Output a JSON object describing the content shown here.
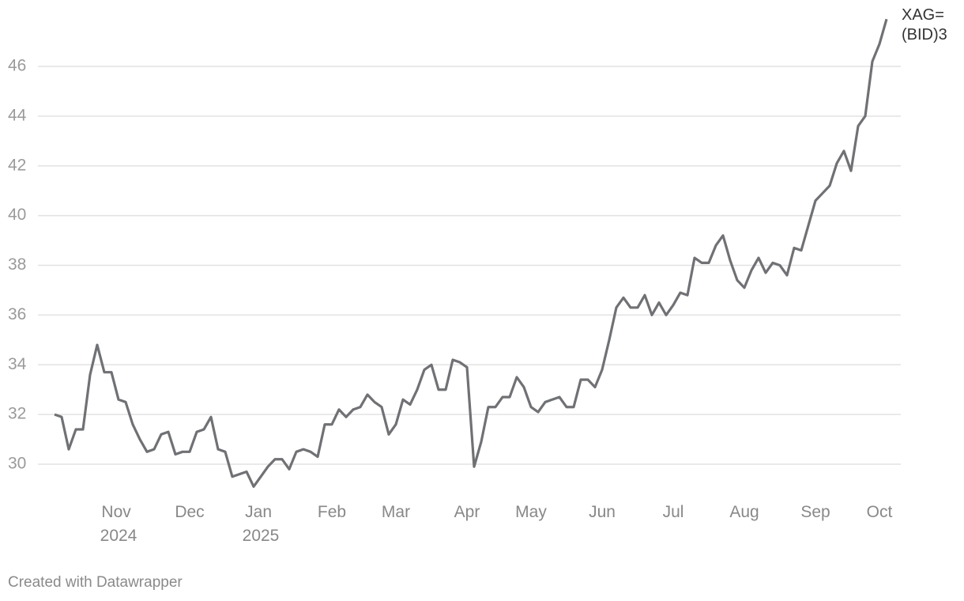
{
  "chart_data": {
    "type": "line",
    "categories": [
      null,
      null,
      null,
      null,
      null,
      null,
      null,
      null,
      null,
      "Nov 2024",
      null,
      null,
      null,
      null,
      null,
      null,
      null,
      null,
      null,
      "Dec",
      null,
      null,
      null,
      null,
      null,
      null,
      null,
      null,
      null,
      "Jan 2025",
      null,
      null,
      null,
      null,
      null,
      null,
      null,
      null,
      null,
      "Feb",
      null,
      null,
      null,
      null,
      null,
      null,
      null,
      null,
      "Mar",
      null,
      null,
      null,
      null,
      null,
      null,
      null,
      null,
      null,
      "Apr",
      null,
      null,
      null,
      null,
      null,
      null,
      null,
      null,
      "May",
      null,
      null,
      null,
      null,
      null,
      null,
      null,
      null,
      null,
      "Jun",
      null,
      null,
      null,
      null,
      null,
      null,
      null,
      null,
      null,
      "Jul",
      null,
      null,
      null,
      null,
      null,
      null,
      null,
      null,
      null,
      "Aug",
      null,
      null,
      null,
      null,
      null,
      null,
      null,
      null,
      null,
      "Sep",
      null,
      null,
      null,
      null,
      null,
      null,
      null,
      null,
      "Oct",
      null
    ],
    "series": [
      {
        "name": "XAG=(BID)3",
        "color": "#707174",
        "values": [
          32.0,
          31.9,
          30.6,
          31.4,
          31.4,
          33.6,
          34.8,
          33.7,
          33.7,
          32.6,
          32.5,
          31.6,
          31.0,
          30.5,
          30.6,
          31.2,
          31.3,
          30.4,
          30.5,
          30.5,
          31.3,
          31.4,
          31.9,
          30.6,
          30.5,
          29.5,
          29.6,
          29.7,
          29.1,
          29.5,
          29.9,
          30.2,
          30.2,
          29.8,
          30.5,
          30.6,
          30.5,
          30.3,
          31.6,
          31.6,
          32.2,
          31.9,
          32.2,
          32.3,
          32.8,
          32.5,
          32.3,
          31.2,
          31.6,
          32.6,
          32.4,
          33.0,
          33.8,
          34.0,
          33.0,
          33.0,
          34.2,
          34.1,
          33.9,
          29.9,
          30.9,
          32.3,
          32.3,
          32.7,
          32.7,
          33.5,
          33.1,
          32.3,
          32.1,
          32.5,
          32.6,
          32.7,
          32.3,
          32.3,
          33.4,
          33.4,
          33.1,
          33.8,
          35.0,
          36.3,
          36.7,
          36.3,
          36.3,
          36.8,
          36.0,
          36.5,
          36.0,
          36.4,
          36.9,
          36.8,
          38.3,
          38.1,
          38.1,
          38.8,
          39.2,
          38.2,
          37.4,
          37.1,
          37.8,
          38.3,
          37.7,
          38.1,
          38.0,
          37.6,
          38.7,
          38.6,
          39.6,
          40.6,
          40.9,
          41.2,
          42.1,
          42.6,
          41.8,
          43.6,
          44.0,
          46.2,
          46.9,
          47.9
        ]
      }
    ],
    "ylim": [
      28.5,
      48
    ],
    "yticks": [
      30,
      32,
      34,
      36,
      38,
      40,
      42,
      44,
      46
    ],
    "grid": true,
    "footer": "Created with Datawrapper"
  }
}
